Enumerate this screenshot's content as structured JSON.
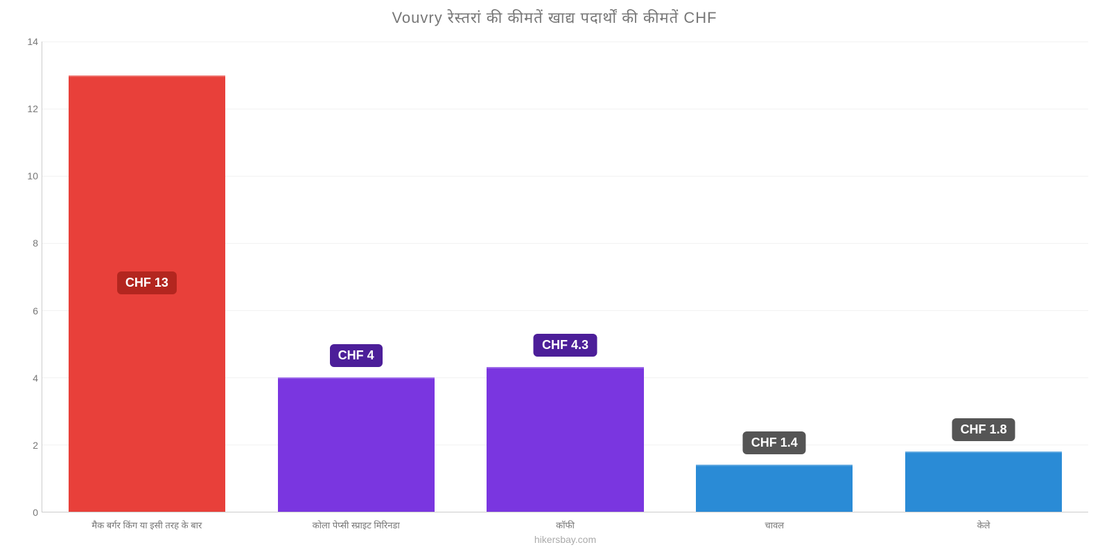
{
  "chart": {
    "type": "bar",
    "title": "Vouvry रेस्तरां की कीमतें खाद्य पदार्थों की कीमतें CHF",
    "title_fontsize": 22,
    "title_color": "#777777",
    "background_color": "#ffffff",
    "grid_color": "#f2f2f2",
    "axis_color": "#cccccc",
    "label_color": "#777777",
    "attribution": "hikersbay.com",
    "attribution_color": "#aaaaaa",
    "attribution_fontsize": 14,
    "ylim_min": 0,
    "ylim_max": 14,
    "ytick_step": 2,
    "ytick_labels": [
      "0",
      "2",
      "4",
      "6",
      "8",
      "10",
      "12",
      "14"
    ],
    "ytick_fontsize": 14,
    "xtick_fontsize": 13,
    "bar_width_pct": 75,
    "value_badge_fontsize": 18,
    "value_badge_text_color": "#ffffff",
    "bars": [
      {
        "category": "मैक बर्गर किंग या इसी तरह के बार",
        "value": 13,
        "value_label": "CHF 13",
        "bar_color": "#e8403a",
        "badge_bg": "#b3261f",
        "badge_position": "inside"
      },
      {
        "category": "कोला पेप्सी स्प्राइट मिरिनडा",
        "value": 4,
        "value_label": "CHF 4",
        "bar_color": "#7a36e0",
        "badge_bg": "#4c1e99",
        "badge_position": "above"
      },
      {
        "category": "कॉफी",
        "value": 4.3,
        "value_label": "CHF 4.3",
        "bar_color": "#7a36e0",
        "badge_bg": "#4c1e99",
        "badge_position": "above"
      },
      {
        "category": "चावल",
        "value": 1.4,
        "value_label": "CHF 1.4",
        "bar_color": "#2a8bd6",
        "badge_bg": "#555555",
        "badge_position": "above"
      },
      {
        "category": "केले",
        "value": 1.8,
        "value_label": "CHF 1.8",
        "bar_color": "#2a8bd6",
        "badge_bg": "#555555",
        "badge_position": "above"
      }
    ]
  }
}
